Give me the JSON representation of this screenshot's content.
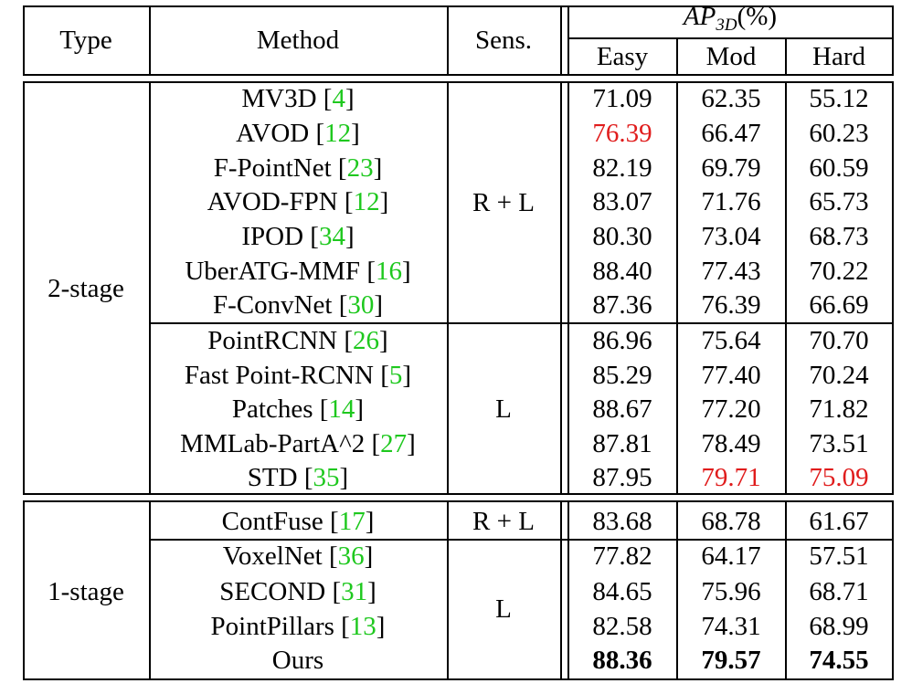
{
  "header": {
    "type": "Type",
    "method": "Method",
    "sens": "Sens.",
    "metric_main": "AP",
    "metric_sub": "3D",
    "metric_unit": "(%)",
    "easy": "Easy",
    "mod": "Mod",
    "hard": "Hard"
  },
  "groups": [
    {
      "type": "2-stage",
      "subgroups": [
        {
          "sens": "R + L",
          "rows": [
            {
              "name": "MV3D",
              "ref": "4",
              "easy": "71.09",
              "mod": "62.35",
              "hard": "55.12"
            },
            {
              "name": "AVOD",
              "ref": "12",
              "easy": "76.39",
              "mod": "66.47",
              "hard": "60.23"
            },
            {
              "name": "F-PointNet",
              "ref": "23",
              "easy": "82.19",
              "mod": "69.79",
              "hard": "60.59"
            },
            {
              "name": "AVOD-FPN",
              "ref": "12",
              "easy": "83.07",
              "mod": "71.76",
              "hard": "65.73"
            },
            {
              "name": "IPOD",
              "ref": "34",
              "easy": "80.30",
              "mod": "73.04",
              "hard": "68.73"
            },
            {
              "name": "UberATG-MMF",
              "ref": "16",
              "easy": "88.40",
              "mod": "77.43",
              "hard": "70.22"
            },
            {
              "name": "F-ConvNet",
              "ref": "30",
              "easy": "87.36",
              "mod": "76.39",
              "hard": "66.69"
            }
          ]
        },
        {
          "sens": "L",
          "rows": [
            {
              "name": "PointRCNN",
              "ref": "26",
              "easy": "86.96",
              "mod": "75.64",
              "hard": "70.70"
            },
            {
              "name": "Fast Point-RCNN",
              "ref": "5",
              "easy": "85.29",
              "mod": "77.40",
              "hard": "70.24"
            },
            {
              "name": "Patches",
              "ref": "14",
              "easy": "88.67",
              "mod": "77.20",
              "hard": "71.82"
            },
            {
              "name": "MMLab-PartA^2",
              "ref": "27",
              "easy": "87.81",
              "mod": "78.49",
              "hard": "73.51"
            },
            {
              "name": "STD",
              "ref": "35",
              "easy": "87.95",
              "mod": "79.71",
              "hard": "75.09"
            }
          ]
        }
      ]
    },
    {
      "type": "1-stage",
      "subgroups": [
        {
          "sens": "R + L",
          "rows": [
            {
              "name": "ContFuse",
              "ref": "17",
              "easy": "83.68",
              "mod": "68.78",
              "hard": "61.67"
            }
          ]
        },
        {
          "sens": "L",
          "rows": [
            {
              "name": "VoxelNet",
              "ref": "36",
              "easy": "77.82",
              "mod": "64.17",
              "hard": "57.51"
            },
            {
              "name": "SECOND",
              "ref": "31",
              "easy": "84.65",
              "mod": "75.96",
              "hard": "68.71"
            },
            {
              "name": "PointPillars",
              "ref": "13",
              "easy": "82.58",
              "mod": "74.31",
              "hard": "68.99"
            },
            {
              "name": "Ours",
              "ref": "",
              "easy": "88.36",
              "mod": "79.57",
              "hard": "74.55"
            }
          ]
        }
      ]
    }
  ],
  "highlight": {
    "red": [
      [
        1,
        "easy"
      ],
      [
        11,
        "mod"
      ],
      [
        11,
        "hard"
      ]
    ],
    "bold": [
      [
        16,
        "easy"
      ],
      [
        16,
        "mod"
      ],
      [
        16,
        "hard"
      ]
    ],
    "red_color": "#e01c1c",
    "cite_color": "#1ec81e"
  }
}
